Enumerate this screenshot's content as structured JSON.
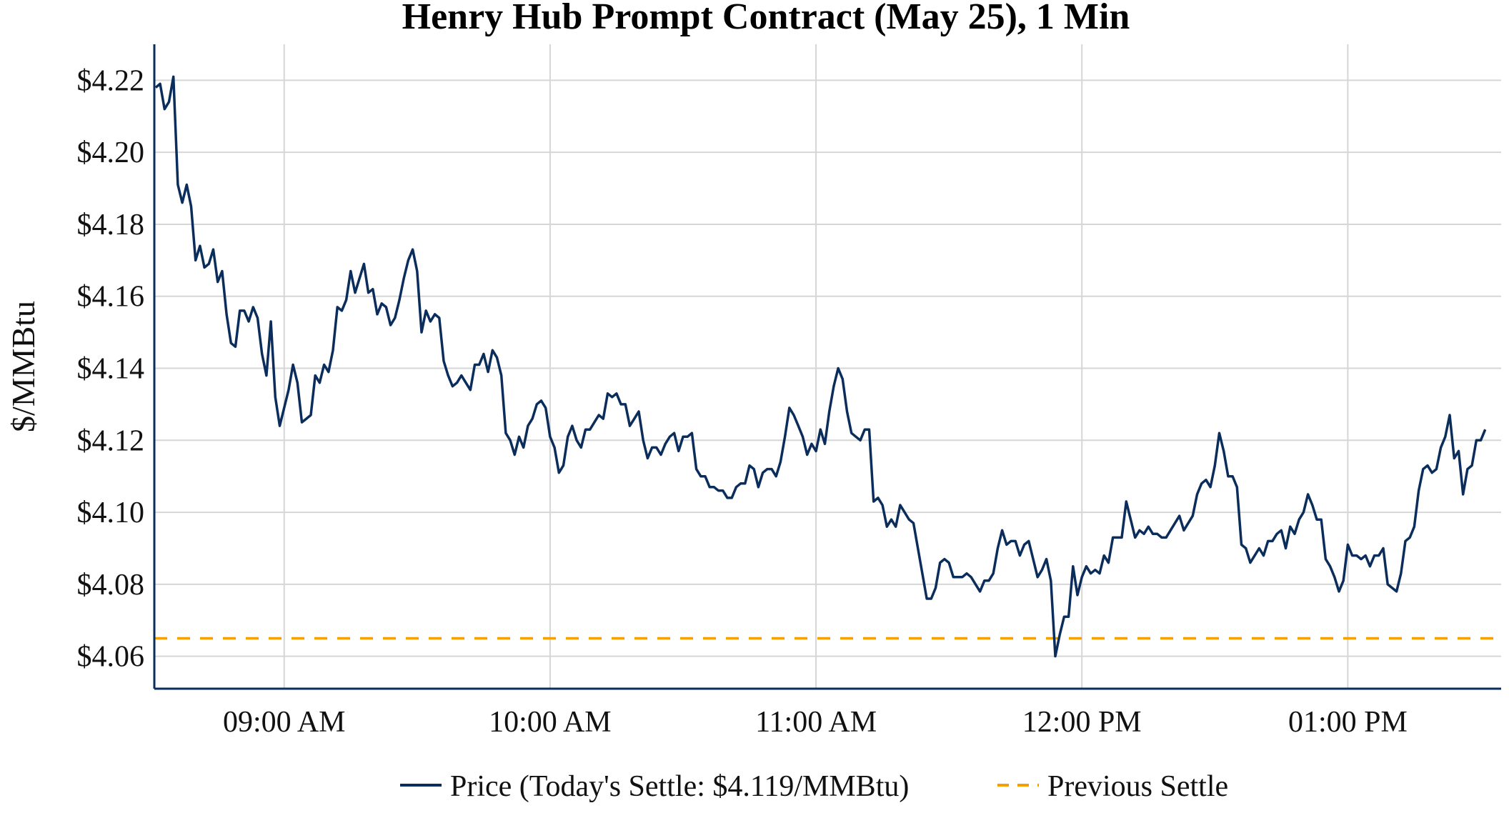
{
  "chart_data": {
    "type": "line",
    "title": "Henry Hub Prompt Contract (May 25), 1 Min",
    "xlabel": "",
    "ylabel": "$/MMBtu",
    "time_start": "08:31",
    "interval_minutes": 1,
    "xlim": [
      "08:31",
      "13:35"
    ],
    "ylim": [
      4.051,
      4.23
    ],
    "x_ticks": [
      {
        "time": "09:00",
        "label": "09:00 AM"
      },
      {
        "time": "10:00",
        "label": "10:00 AM"
      },
      {
        "time": "11:00",
        "label": "11:00 AM"
      },
      {
        "time": "12:00",
        "label": "12:00 PM"
      },
      {
        "time": "13:00",
        "label": "01:00 PM"
      }
    ],
    "y_ticks": [
      {
        "value": 4.06,
        "label": "$4.06"
      },
      {
        "value": 4.08,
        "label": "$4.08"
      },
      {
        "value": 4.1,
        "label": "$4.10"
      },
      {
        "value": 4.12,
        "label": "$4.12"
      },
      {
        "value": 4.14,
        "label": "$4.14"
      },
      {
        "value": 4.16,
        "label": "$4.16"
      },
      {
        "value": 4.18,
        "label": "$4.18"
      },
      {
        "value": 4.2,
        "label": "$4.20"
      },
      {
        "value": 4.22,
        "label": "$4.22"
      }
    ],
    "grid": true,
    "legend_position": "bottom",
    "series": [
      {
        "name": "Price (Today's Settle: $4.119/MMBtu)",
        "color": "#0b2d5b",
        "style": "solid",
        "values": [
          4.218,
          4.219,
          4.212,
          4.214,
          4.221,
          4.191,
          4.186,
          4.191,
          4.185,
          4.17,
          4.174,
          4.168,
          4.169,
          4.173,
          4.164,
          4.167,
          4.155,
          4.147,
          4.146,
          4.156,
          4.156,
          4.153,
          4.157,
          4.154,
          4.144,
          4.138,
          4.153,
          4.132,
          4.124,
          4.129,
          4.134,
          4.141,
          4.136,
          4.125,
          4.126,
          4.127,
          4.138,
          4.136,
          4.141,
          4.139,
          4.145,
          4.157,
          4.156,
          4.159,
          4.167,
          4.161,
          4.165,
          4.169,
          4.161,
          4.162,
          4.155,
          4.158,
          4.157,
          4.152,
          4.154,
          4.159,
          4.165,
          4.17,
          4.173,
          4.167,
          4.15,
          4.156,
          4.153,
          4.155,
          4.154,
          4.142,
          4.138,
          4.135,
          4.136,
          4.138,
          4.136,
          4.134,
          4.141,
          4.141,
          4.144,
          4.139,
          4.145,
          4.143,
          4.138,
          4.122,
          4.12,
          4.116,
          4.121,
          4.118,
          4.124,
          4.126,
          4.13,
          4.131,
          4.129,
          4.121,
          4.118,
          4.111,
          4.113,
          4.121,
          4.124,
          4.12,
          4.118,
          4.123,
          4.123,
          4.125,
          4.127,
          4.126,
          4.133,
          4.132,
          4.133,
          4.13,
          4.13,
          4.124,
          4.126,
          4.128,
          4.12,
          4.115,
          4.118,
          4.118,
          4.116,
          4.119,
          4.121,
          4.122,
          4.117,
          4.121,
          4.121,
          4.122,
          4.112,
          4.11,
          4.11,
          4.107,
          4.107,
          4.106,
          4.106,
          4.104,
          4.104,
          4.107,
          4.108,
          4.108,
          4.113,
          4.112,
          4.107,
          4.111,
          4.112,
          4.112,
          4.11,
          4.114,
          4.121,
          4.129,
          4.127,
          4.124,
          4.121,
          4.116,
          4.119,
          4.117,
          4.123,
          4.119,
          4.128,
          4.135,
          4.14,
          4.137,
          4.128,
          4.122,
          4.121,
          4.12,
          4.123,
          4.123,
          4.103,
          4.104,
          4.102,
          4.096,
          4.098,
          4.096,
          4.102,
          4.1,
          4.098,
          4.097,
          4.09,
          4.083,
          4.076,
          4.076,
          4.079,
          4.086,
          4.087,
          4.086,
          4.082,
          4.082,
          4.082,
          4.083,
          4.082,
          4.08,
          4.078,
          4.081,
          4.081,
          4.083,
          4.09,
          4.095,
          4.091,
          4.092,
          4.092,
          4.088,
          4.091,
          4.092,
          4.087,
          4.082,
          4.084,
          4.087,
          4.081,
          4.06,
          4.066,
          4.071,
          4.071,
          4.085,
          4.077,
          4.082,
          4.085,
          4.083,
          4.084,
          4.083,
          4.088,
          4.086,
          4.093,
          4.093,
          4.093,
          4.103,
          4.098,
          4.093,
          4.095,
          4.094,
          4.096,
          4.094,
          4.094,
          4.093,
          4.093,
          4.095,
          4.097,
          4.099,
          4.095,
          4.097,
          4.099,
          4.105,
          4.108,
          4.109,
          4.107,
          4.113,
          4.122,
          4.117,
          4.11,
          4.11,
          4.107,
          4.091,
          4.09,
          4.086,
          4.088,
          4.09,
          4.088,
          4.092,
          4.092,
          4.094,
          4.095,
          4.09,
          4.096,
          4.094,
          4.098,
          4.1,
          4.105,
          4.102,
          4.098,
          4.098,
          4.087,
          4.085,
          4.082,
          4.078,
          4.081,
          4.091,
          4.088,
          4.088,
          4.087,
          4.088,
          4.085,
          4.088,
          4.088,
          4.09,
          4.08,
          4.079,
          4.078,
          4.083,
          4.092,
          4.093,
          4.096,
          4.106,
          4.112,
          4.113,
          4.111,
          4.112,
          4.118,
          4.121,
          4.127,
          4.115,
          4.117,
          4.105,
          4.112,
          4.113,
          4.12,
          4.12,
          4.123
        ]
      },
      {
        "name": "Previous Settle",
        "color": "#f5a000",
        "style": "dashed",
        "value": 4.065
      }
    ]
  }
}
